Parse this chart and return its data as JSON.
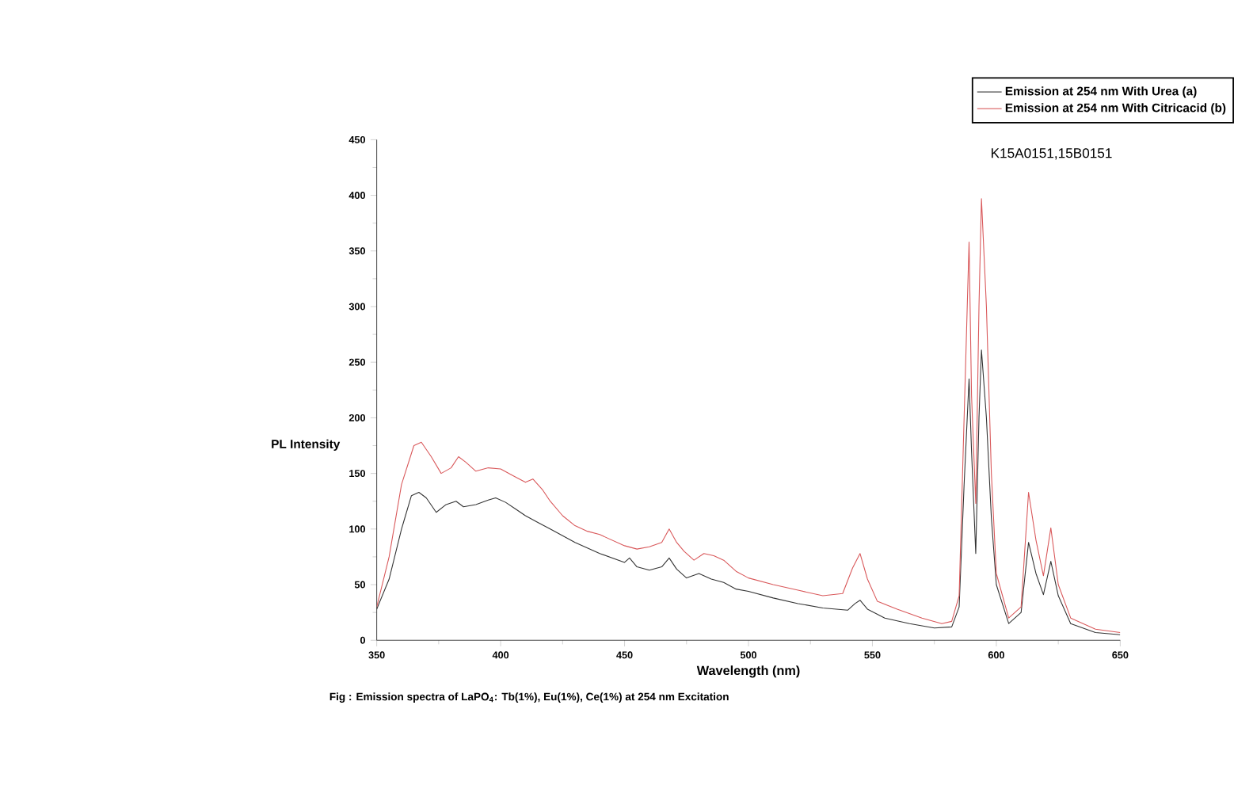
{
  "chart_data": {
    "type": "line",
    "xlabel": "Wavelength (nm)",
    "ylabel": "PL Intensity",
    "xlim": [
      350,
      650
    ],
    "ylim": [
      0,
      450
    ],
    "xticks": [
      350,
      400,
      450,
      500,
      550,
      600,
      650
    ],
    "yticks": [
      0,
      50,
      100,
      150,
      200,
      250,
      300,
      350,
      400,
      450
    ],
    "grid": false,
    "legend": "top right",
    "marker": "none",
    "line_style": "solid",
    "annotations": [
      "Fig : Emission spectra of LaPO$_{4}$: Tb(1%), Eu(1%), Ce(1%) at 254 nm Excitation",
      "K15A0151,15B0151"
    ],
    "series": [
      {
        "name": "Emission at 254 nm With Urea (a)",
        "color": "#333333",
        "x": [
          350,
          355,
          360,
          364,
          367,
          370,
          374,
          378,
          382,
          385,
          390,
          395,
          398,
          402,
          406,
          410,
          415,
          420,
          430,
          440,
          450,
          452,
          455,
          460,
          465,
          468,
          471,
          475,
          480,
          485,
          490,
          495,
          500,
          510,
          520,
          530,
          540,
          543,
          545,
          548,
          555,
          565,
          575,
          582,
          585,
          587,
          589,
          590,
          591.7,
          593,
          594,
          596,
          598,
          600,
          605,
          610,
          613,
          616,
          619,
          622,
          625,
          630,
          640,
          650
        ],
        "values": [
          28,
          55,
          100,
          130,
          133,
          128,
          115,
          122,
          125,
          120,
          122,
          126,
          128,
          124,
          118,
          112,
          106,
          100,
          88,
          78,
          70,
          74,
          66,
          63,
          66,
          74,
          64,
          56,
          60,
          55,
          52,
          46,
          44,
          38,
          33,
          29,
          27,
          33,
          36,
          28,
          20,
          15,
          11,
          12,
          30,
          140,
          235,
          170,
          78,
          200,
          261,
          200,
          110,
          50,
          15,
          25,
          88,
          60,
          41,
          71,
          40,
          15,
          7,
          5
        ]
      },
      {
        "name": "Emission at 254 nm With Citricacid (b)",
        "color": "#d9585a",
        "x": [
          350,
          355,
          360,
          365,
          368,
          372,
          376,
          380,
          383,
          386,
          390,
          395,
          400,
          405,
          410,
          413,
          417,
          420,
          425,
          430,
          435,
          440,
          445,
          450,
          455,
          460,
          465,
          468,
          471,
          474,
          478,
          482,
          486,
          490,
          495,
          500,
          510,
          520,
          530,
          538,
          542,
          545,
          548,
          552,
          560,
          570,
          578,
          582,
          585,
          587,
          589,
          590,
          591.7,
          593,
          594,
          596,
          598,
          600,
          605,
          610,
          613,
          616,
          619,
          622,
          625,
          630,
          640,
          650
        ],
        "values": [
          30,
          75,
          140,
          175,
          178,
          165,
          150,
          155,
          165,
          160,
          152,
          155,
          154,
          148,
          142,
          145,
          135,
          125,
          112,
          103,
          98,
          95,
          90,
          85,
          82,
          84,
          88,
          100,
          88,
          80,
          72,
          78,
          76,
          72,
          62,
          56,
          50,
          45,
          40,
          42,
          65,
          78,
          55,
          35,
          28,
          20,
          15,
          17,
          40,
          200,
          358,
          220,
          123,
          300,
          397,
          300,
          150,
          60,
          20,
          30,
          133,
          90,
          58,
          101,
          50,
          20,
          10,
          7
        ]
      }
    ]
  }
}
